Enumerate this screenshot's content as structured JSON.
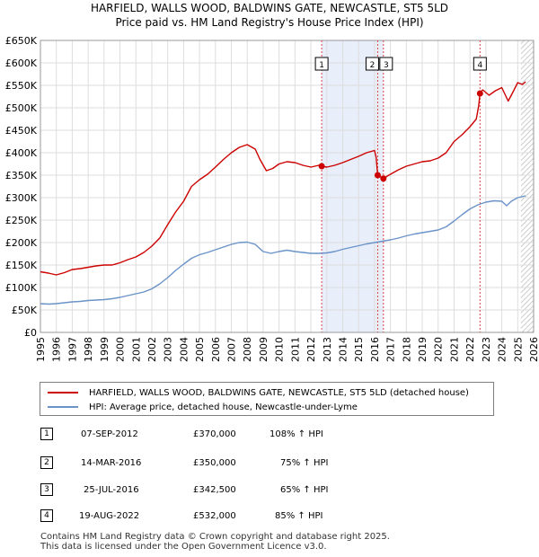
{
  "title_line1": "HARFIELD, WALLS WOOD, BALDWINS GATE, NEWCASTLE, ST5 5LD",
  "title_line2": "Price paid vs. HM Land Registry's House Price Index (HPI)",
  "colors": {
    "property": "#cc0000",
    "hpi": "#6a93c8",
    "shade": "#e8eefa",
    "vline": "#dd4444"
  },
  "chart_data": {
    "type": "line",
    "title": "HARFIELD, WALLS WOOD, BALDWINS GATE, NEWCASTLE, ST5 5LD",
    "subtitle": "Price paid vs. HM Land Registry's House Price Index (HPI)",
    "xlabel": "",
    "ylabel": "",
    "xlim": [
      1995,
      2026
    ],
    "ylim": [
      0,
      650000
    ],
    "grid": true,
    "x_ticks": [
      "1995",
      "1996",
      "1997",
      "1998",
      "1999",
      "2000",
      "2001",
      "2002",
      "2003",
      "2004",
      "2005",
      "2006",
      "2007",
      "2008",
      "2009",
      "2010",
      "2011",
      "2012",
      "2013",
      "2014",
      "2015",
      "2016",
      "2017",
      "2018",
      "2019",
      "2020",
      "2021",
      "2022",
      "2023",
      "2024",
      "2025",
      "2026"
    ],
    "y_ticks": [
      {
        "value": 0,
        "label": "£0"
      },
      {
        "value": 50000,
        "label": "£50K"
      },
      {
        "value": 100000,
        "label": "£100K"
      },
      {
        "value": 150000,
        "label": "£150K"
      },
      {
        "value": 200000,
        "label": "£200K"
      },
      {
        "value": 250000,
        "label": "£250K"
      },
      {
        "value": 300000,
        "label": "£300K"
      },
      {
        "value": 350000,
        "label": "£350K"
      },
      {
        "value": 400000,
        "label": "£400K"
      },
      {
        "value": 450000,
        "label": "£450K"
      },
      {
        "value": 500000,
        "label": "£500K"
      },
      {
        "value": 550000,
        "label": "£550K"
      },
      {
        "value": 600000,
        "label": "£600K"
      },
      {
        "value": 650000,
        "label": "£650K"
      }
    ],
    "series": [
      {
        "name": "HARFIELD, WALLS WOOD, BALDWINS GATE, NEWCASTLE, ST5 5LD (detached house)",
        "color": "#cc0000",
        "points": [
          [
            1995.0,
            135000
          ],
          [
            1995.5,
            132000
          ],
          [
            1996.0,
            128000
          ],
          [
            1996.5,
            133000
          ],
          [
            1997.0,
            140000
          ],
          [
            1997.5,
            142000
          ],
          [
            1998.0,
            145000
          ],
          [
            1998.5,
            148000
          ],
          [
            1999.0,
            150000
          ],
          [
            1999.5,
            150000
          ],
          [
            2000.0,
            155000
          ],
          [
            2000.5,
            162000
          ],
          [
            2001.0,
            168000
          ],
          [
            2001.5,
            178000
          ],
          [
            2002.0,
            192000
          ],
          [
            2002.5,
            210000
          ],
          [
            2003.0,
            240000
          ],
          [
            2003.5,
            268000
          ],
          [
            2004.0,
            292000
          ],
          [
            2004.5,
            325000
          ],
          [
            2005.0,
            340000
          ],
          [
            2005.5,
            352000
          ],
          [
            2006.0,
            368000
          ],
          [
            2006.5,
            385000
          ],
          [
            2007.0,
            400000
          ],
          [
            2007.5,
            412000
          ],
          [
            2008.0,
            418000
          ],
          [
            2008.5,
            408000
          ],
          [
            2008.8,
            385000
          ],
          [
            2009.2,
            360000
          ],
          [
            2009.6,
            365000
          ],
          [
            2010.0,
            375000
          ],
          [
            2010.5,
            380000
          ],
          [
            2011.0,
            378000
          ],
          [
            2011.5,
            372000
          ],
          [
            2012.0,
            368000
          ],
          [
            2012.5,
            372000
          ],
          [
            2012.68,
            370000
          ],
          [
            2013.0,
            368000
          ],
          [
            2013.5,
            372000
          ],
          [
            2014.0,
            378000
          ],
          [
            2014.5,
            385000
          ],
          [
            2015.0,
            392000
          ],
          [
            2015.5,
            400000
          ],
          [
            2016.0,
            405000
          ],
          [
            2016.1,
            390000
          ],
          [
            2016.2,
            350000
          ],
          [
            2016.56,
            342500
          ],
          [
            2016.8,
            348000
          ],
          [
            2017.0,
            352000
          ],
          [
            2017.5,
            362000
          ],
          [
            2018.0,
            370000
          ],
          [
            2018.5,
            375000
          ],
          [
            2019.0,
            380000
          ],
          [
            2019.5,
            382000
          ],
          [
            2020.0,
            388000
          ],
          [
            2020.5,
            400000
          ],
          [
            2021.0,
            425000
          ],
          [
            2021.5,
            440000
          ],
          [
            2022.0,
            458000
          ],
          [
            2022.4,
            475000
          ],
          [
            2022.55,
            505000
          ],
          [
            2022.63,
            532000
          ],
          [
            2022.8,
            540000
          ],
          [
            2023.2,
            528000
          ],
          [
            2023.6,
            538000
          ],
          [
            2024.0,
            545000
          ],
          [
            2024.4,
            515000
          ],
          [
            2024.7,
            535000
          ],
          [
            2025.0,
            556000
          ],
          [
            2025.3,
            552000
          ],
          [
            2025.5,
            558000
          ]
        ]
      },
      {
        "name": "HPI: Average price, detached house, Newcastle-under-Lyme",
        "color": "#6a93c8",
        "points": [
          [
            1995.0,
            64000
          ],
          [
            1995.5,
            63000
          ],
          [
            1996.0,
            64000
          ],
          [
            1996.5,
            66000
          ],
          [
            1997.0,
            68000
          ],
          [
            1997.5,
            69000
          ],
          [
            1998.0,
            71000
          ],
          [
            1998.5,
            72000
          ],
          [
            1999.0,
            73000
          ],
          [
            1999.5,
            75000
          ],
          [
            2000.0,
            78000
          ],
          [
            2000.5,
            82000
          ],
          [
            2001.0,
            86000
          ],
          [
            2001.5,
            90000
          ],
          [
            2002.0,
            97000
          ],
          [
            2002.5,
            108000
          ],
          [
            2003.0,
            122000
          ],
          [
            2003.5,
            138000
          ],
          [
            2004.0,
            152000
          ],
          [
            2004.5,
            165000
          ],
          [
            2005.0,
            173000
          ],
          [
            2005.5,
            178000
          ],
          [
            2006.0,
            184000
          ],
          [
            2006.5,
            190000
          ],
          [
            2007.0,
            196000
          ],
          [
            2007.5,
            200000
          ],
          [
            2008.0,
            201000
          ],
          [
            2008.5,
            196000
          ],
          [
            2009.0,
            180000
          ],
          [
            2009.5,
            176000
          ],
          [
            2010.0,
            180000
          ],
          [
            2010.5,
            183000
          ],
          [
            2011.0,
            180000
          ],
          [
            2011.5,
            178000
          ],
          [
            2012.0,
            176000
          ],
          [
            2012.5,
            176000
          ],
          [
            2013.0,
            177000
          ],
          [
            2013.5,
            180000
          ],
          [
            2014.0,
            185000
          ],
          [
            2014.5,
            189000
          ],
          [
            2015.0,
            193000
          ],
          [
            2015.5,
            197000
          ],
          [
            2016.0,
            200000
          ],
          [
            2016.5,
            203000
          ],
          [
            2017.0,
            206000
          ],
          [
            2017.5,
            210000
          ],
          [
            2018.0,
            215000
          ],
          [
            2018.5,
            219000
          ],
          [
            2019.0,
            222000
          ],
          [
            2019.5,
            225000
          ],
          [
            2020.0,
            228000
          ],
          [
            2020.5,
            235000
          ],
          [
            2021.0,
            248000
          ],
          [
            2021.5,
            262000
          ],
          [
            2022.0,
            275000
          ],
          [
            2022.5,
            284000
          ],
          [
            2023.0,
            290000
          ],
          [
            2023.5,
            293000
          ],
          [
            2024.0,
            292000
          ],
          [
            2024.3,
            282000
          ],
          [
            2024.6,
            292000
          ],
          [
            2025.0,
            300000
          ],
          [
            2025.5,
            304000
          ]
        ]
      }
    ],
    "transactions": [
      {
        "num": "1",
        "date": "07-SEP-2012",
        "price": "£370,000",
        "hpi": "108% ↑ HPI",
        "x": 2012.68,
        "y": 370000
      },
      {
        "num": "2",
        "date": "14-MAR-2016",
        "price": "£350,000",
        "hpi": "75% ↑ HPI",
        "x": 2016.2,
        "y": 350000
      },
      {
        "num": "3",
        "date": "25-JUL-2016",
        "price": "£342,500",
        "hpi": "65% ↑ HPI",
        "x": 2016.56,
        "y": 342500
      },
      {
        "num": "4",
        "date": "19-AUG-2022",
        "price": "£532,000",
        "hpi": "85% ↑ HPI",
        "x": 2022.63,
        "y": 532000
      }
    ],
    "shaded_ranges": [
      [
        2012.68,
        2016.56
      ],
      [
        2022.63,
        2022.63
      ]
    ],
    "forecast_start": 2025.2
  },
  "legend": {
    "property_label": "HARFIELD, WALLS WOOD, BALDWINS GATE, NEWCASTLE, ST5 5LD (detached house)",
    "hpi_label": "HPI: Average price, detached house, Newcastle-under-Lyme"
  },
  "footer": {
    "line1": "Contains HM Land Registry data © Crown copyright and database right 2025.",
    "line2": "This data is licensed under the Open Government Licence v3.0."
  }
}
